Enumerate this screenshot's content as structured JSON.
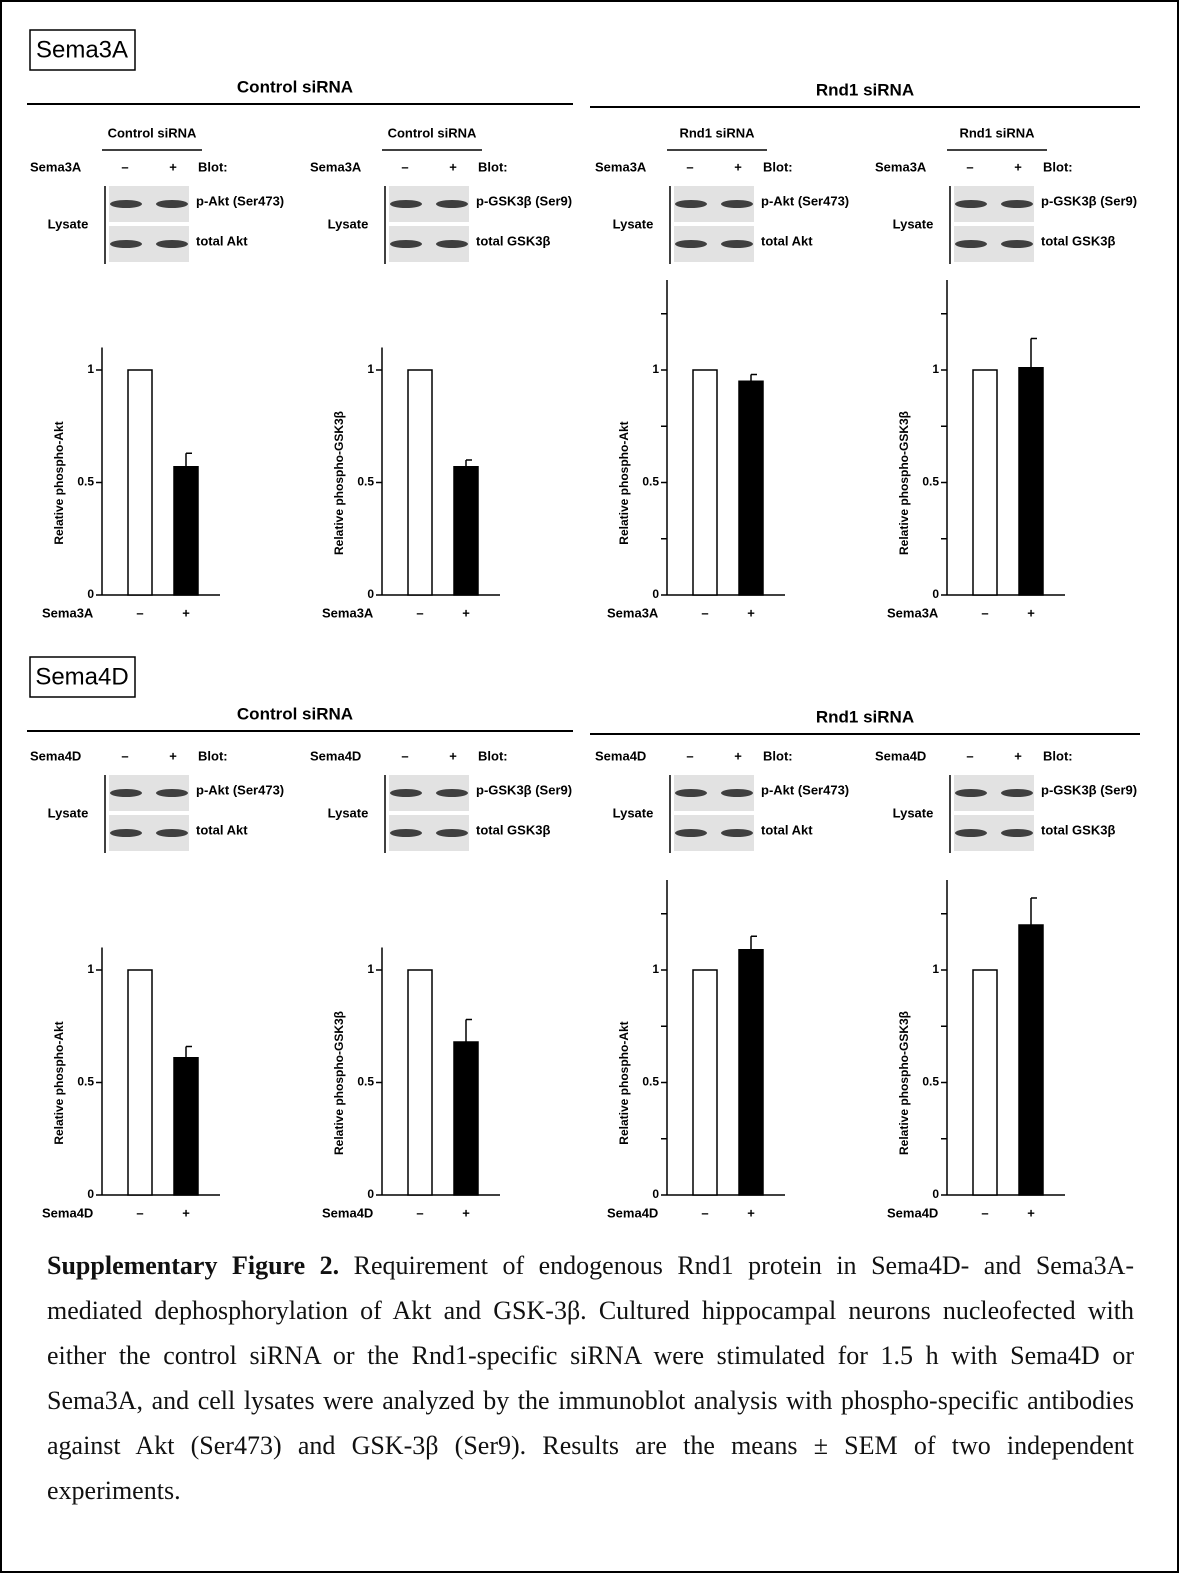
{
  "sections": [
    {
      "label": "Sema3A",
      "groups": [
        {
          "title": "Control siRNA"
        },
        {
          "title": "Rnd1 siRNA"
        }
      ]
    },
    {
      "label": "Sema4D",
      "groups": [
        {
          "title": "Control siRNA"
        },
        {
          "title": "Rnd1 siRNA"
        }
      ]
    }
  ],
  "blots": [
    {
      "header": "Control siRNA",
      "treatment": "Sema3A",
      "minus": "–",
      "plus": "+",
      "blot": "Blot:",
      "lysate": "Lysate",
      "bands": [
        "p-Akt (Ser473)",
        "total Akt"
      ]
    },
    {
      "header": "Control siRNA",
      "treatment": "Sema3A",
      "minus": "–",
      "plus": "+",
      "blot": "Blot:",
      "lysate": "Lysate",
      "bands": [
        "p-GSK3β (Ser9)",
        "total GSK3β"
      ]
    },
    {
      "header": "Rnd1 siRNA",
      "treatment": "Sema3A",
      "minus": "–",
      "plus": "+",
      "blot": "Blot:",
      "lysate": "Lysate",
      "bands": [
        "p-Akt (Ser473)",
        "total Akt"
      ]
    },
    {
      "header": "Rnd1 siRNA",
      "treatment": "Sema3A",
      "minus": "–",
      "plus": "+",
      "blot": "Blot:",
      "lysate": "Lysate",
      "bands": [
        "p-GSK3β (Ser9)",
        "total GSK3β"
      ]
    },
    {
      "treatment": "Sema4D",
      "minus": "–",
      "plus": "+",
      "blot": "Blot:",
      "lysate": "Lysate",
      "bands": [
        "p-Akt (Ser473)",
        "total Akt"
      ]
    },
    {
      "treatment": "Sema4D",
      "minus": "–",
      "plus": "+",
      "blot": "Blot:",
      "lysate": "Lysate",
      "bands": [
        "p-GSK3β (Ser9)",
        "total GSK3β"
      ]
    },
    {
      "treatment": "Sema4D",
      "minus": "–",
      "plus": "+",
      "blot": "Blot:",
      "lysate": "Lysate",
      "bands": [
        "p-Akt (Ser473)",
        "total Akt"
      ]
    },
    {
      "treatment": "Sema4D",
      "minus": "–",
      "plus": "+",
      "blot": "Blot:",
      "lysate": "Lysate",
      "bands": [
        "p-GSK3β (Ser9)",
        "total GSK3β"
      ]
    }
  ],
  "chart_data": [
    {
      "type": "bar",
      "ylabel": "Relative phospho-Akt",
      "xlabel": "Sema3A",
      "categories": [
        "–",
        "+"
      ],
      "values": [
        1,
        0.57
      ],
      "errors": [
        null,
        0.06
      ],
      "colors": [
        "#ffffff",
        "#000000"
      ],
      "ylim": [
        0,
        1.1
      ],
      "yticks": [
        0,
        0.5,
        1
      ]
    },
    {
      "type": "bar",
      "ylabel": "Relative phospho-GSK3β",
      "xlabel": "Sema3A",
      "categories": [
        "–",
        "+"
      ],
      "values": [
        1,
        0.57
      ],
      "errors": [
        null,
        0.03
      ],
      "colors": [
        "#ffffff",
        "#000000"
      ],
      "ylim": [
        0,
        1.1
      ],
      "yticks": [
        0,
        0.5,
        1
      ]
    },
    {
      "type": "bar",
      "ylabel": "Relative phospho-Akt",
      "xlabel": "Sema3A",
      "categories": [
        "–",
        "+"
      ],
      "values": [
        1,
        0.95
      ],
      "errors": [
        null,
        0.03
      ],
      "colors": [
        "#ffffff",
        "#000000"
      ],
      "ylim": [
        0,
        1.4
      ],
      "yticks": [
        0,
        0.5,
        1
      ],
      "minor_yticks": [
        0.25,
        0.75,
        1.25
      ]
    },
    {
      "type": "bar",
      "ylabel": "Relative phospho-GSK3β",
      "xlabel": "Sema3A",
      "categories": [
        "–",
        "+"
      ],
      "values": [
        1,
        1.01
      ],
      "errors": [
        null,
        0.13
      ],
      "colors": [
        "#ffffff",
        "#000000"
      ],
      "ylim": [
        0,
        1.4
      ],
      "yticks": [
        0,
        0.5,
        1
      ],
      "minor_yticks": [
        0.25,
        0.75,
        1.25
      ]
    },
    {
      "type": "bar",
      "ylabel": "Relative phospho-Akt",
      "xlabel": "Sema4D",
      "categories": [
        "–",
        "+"
      ],
      "values": [
        1,
        0.61
      ],
      "errors": [
        null,
        0.05
      ],
      "colors": [
        "#ffffff",
        "#000000"
      ],
      "ylim": [
        0,
        1.1
      ],
      "yticks": [
        0,
        0.5,
        1
      ]
    },
    {
      "type": "bar",
      "ylabel": "Relative phospho-GSK3β",
      "xlabel": "Sema4D",
      "categories": [
        "–",
        "+"
      ],
      "values": [
        1,
        0.68
      ],
      "errors": [
        null,
        0.1
      ],
      "colors": [
        "#ffffff",
        "#000000"
      ],
      "ylim": [
        0,
        1.1
      ],
      "yticks": [
        0,
        0.5,
        1
      ]
    },
    {
      "type": "bar",
      "ylabel": "Relative phospho-Akt",
      "xlabel": "Sema4D",
      "categories": [
        "–",
        "+"
      ],
      "values": [
        1,
        1.09
      ],
      "errors": [
        null,
        0.06
      ],
      "colors": [
        "#ffffff",
        "#000000"
      ],
      "ylim": [
        0,
        1.4
      ],
      "yticks": [
        0,
        0.5,
        1
      ],
      "minor_yticks": [
        0.25,
        0.75,
        1.25
      ]
    },
    {
      "type": "bar",
      "ylabel": "Relative phospho-GSK3β",
      "xlabel": "Sema4D",
      "categories": [
        "–",
        "+"
      ],
      "values": [
        1,
        1.2
      ],
      "errors": [
        null,
        0.12
      ],
      "colors": [
        "#ffffff",
        "#000000"
      ],
      "ylim": [
        0,
        1.4
      ],
      "yticks": [
        0,
        0.5,
        1
      ],
      "minor_yticks": [
        0.25,
        0.75,
        1.25
      ]
    }
  ],
  "caption": {
    "bold": "Supplementary Figure 2.",
    "text": "Requirement of endogenous Rnd1 protein in Sema4D- and Sema3A-mediated dephosphorylation of Akt and GSK-3β. Cultured hippocampal neurons nucleofected with either the control siRNA or the Rnd1-specific siRNA were stimulated for 1.5 h with Sema4D or Sema3A, and cell lysates were analyzed by the immunoblot analysis with phospho-specific antibodies against Akt (Ser473) and GSK-3β (Ser9). Results are the means ± SEM of two independent experiments."
  }
}
